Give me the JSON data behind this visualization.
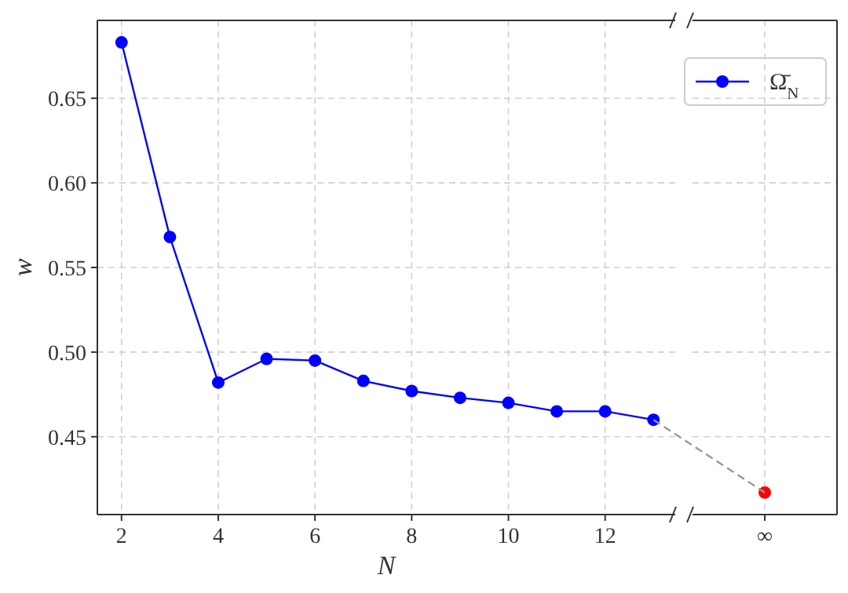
{
  "chart_data": [
    {
      "type": "line",
      "xlabel": "N",
      "ylabel": "w",
      "x": [
        2,
        3,
        4,
        5,
        6,
        7,
        8,
        9,
        10,
        11,
        12,
        13
      ],
      "series": [
        {
          "name": "Ω̄$_{N}$",
          "color": "#0000ff",
          "values": [
            0.683,
            0.568,
            0.482,
            0.496,
            0.495,
            0.483,
            0.477,
            0.473,
            0.47,
            0.465,
            0.465,
            0.46
          ]
        }
      ],
      "xlim": [
        1.5,
        13.45
      ],
      "xticks": [
        2,
        4,
        6,
        8,
        10,
        12
      ],
      "ylim": [
        0.404,
        0.696
      ],
      "yticks": [
        0.45,
        {
          "value": 0.5,
          "label": "0.50"
        },
        0.55,
        {
          "value": 0.6,
          "label": "0.60"
        },
        0.65
      ],
      "grid": true,
      "marker": "circle",
      "line_style": "solid",
      "legend": "top right"
    },
    {
      "type": "scatter",
      "categories": [
        "∞"
      ],
      "series": [
        {
          "color": "#ff0000",
          "values": [
            0.417
          ]
        }
      ],
      "ylim": [
        0.404,
        0.696
      ],
      "yticks": [
        0.45,
        0.5,
        0.55,
        0.6,
        0.65
      ],
      "grid": true,
      "marker": "circle",
      "tick_labels": "x"
    }
  ]
}
